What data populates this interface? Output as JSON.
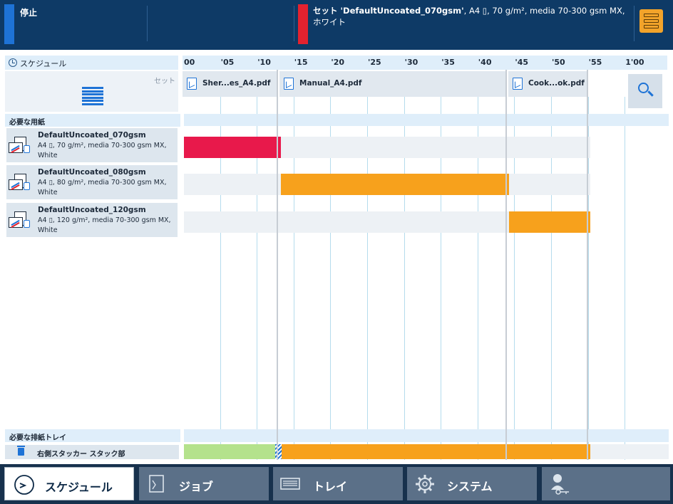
{
  "status": {
    "left_text": "停止",
    "right_title": "セット 'DefaultUncoated_070gsm'",
    "right_detail": ", A4 ▯, 70 g/m², media 70-300 gsm MX, ホワイト",
    "left_color": "#1e73d6",
    "right_color": "#e3222f"
  },
  "schedule": {
    "label": "スケジュール",
    "set_label": "セット",
    "ticks": [
      "00",
      "'05",
      "'10",
      "'15",
      "'20",
      "'25",
      "'30",
      "'35",
      "'40",
      "'45",
      "'50",
      "'55",
      "1'00"
    ],
    "jobs": [
      {
        "name": "Sher...es_A4.pdf"
      },
      {
        "name": "Manual_A4.pdf"
      },
      {
        "name": "Cook...ok.pdf"
      }
    ]
  },
  "media": {
    "section_label": "必要な用紙",
    "items": [
      {
        "name": "DefaultUncoated_070gsm",
        "desc": "A4 ▯, 70 g/m², media 70-300 gsm MX, White",
        "bar_color": "#e8194b",
        "start_min": 0,
        "end_min": 13.2
      },
      {
        "name": "DefaultUncoated_080gsm",
        "desc": "A4 ▯, 80 g/m², media 70-300 gsm MX, White",
        "bar_color": "#f7a11c",
        "start_min": 13.2,
        "end_min": 44.2
      },
      {
        "name": "DefaultUncoated_120gsm",
        "desc": "A4 ▯, 120 g/m², media 70-300 gsm MX, White",
        "bar_color": "#f7a11c",
        "start_min": 44.2,
        "end_min": 55.2
      }
    ]
  },
  "output": {
    "section_label": "必要な排紙トレイ",
    "tray_name": "右側スタッカー スタック部",
    "green_color": "#b4e28c",
    "orange_color": "#f7a11c"
  },
  "nav": {
    "tabs": [
      {
        "label": "スケジュール",
        "icon": "clock-icon",
        "active": true
      },
      {
        "label": "ジョブ",
        "icon": "document-icon",
        "active": false
      },
      {
        "label": "トレイ",
        "icon": "tray-icon",
        "active": false
      },
      {
        "label": "システム",
        "icon": "gear-icon",
        "active": false
      },
      {
        "label": "",
        "icon": "user-key-icon",
        "active": false
      }
    ]
  }
}
